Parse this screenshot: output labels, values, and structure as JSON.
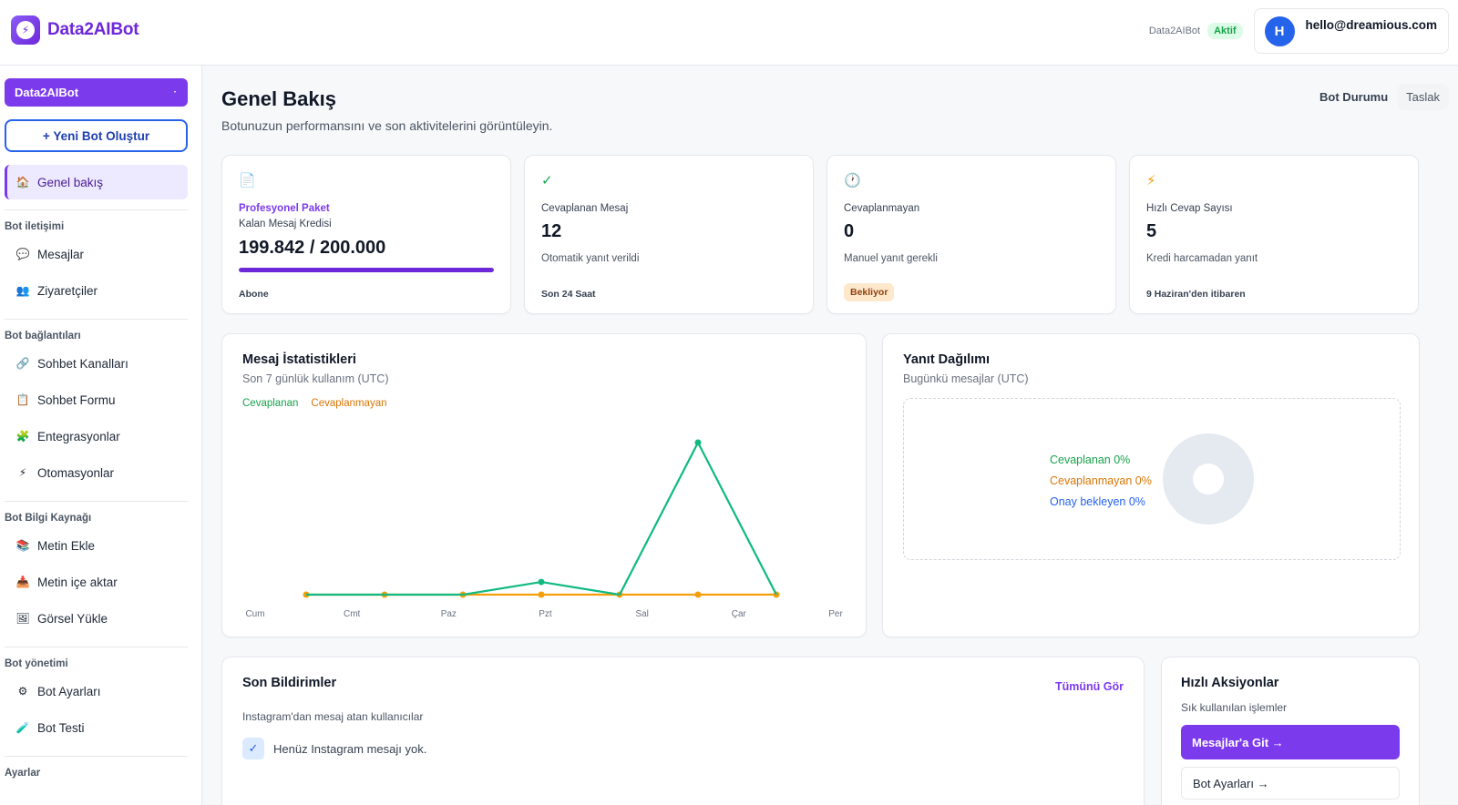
{
  "app": {
    "name": "Data2AIBot",
    "logo_glyph": "⚡"
  },
  "topbar": {
    "bot_name": "Data2AIBot",
    "status": "Aktif",
    "avatar_letter": "H",
    "email": "hello@dreamious.com"
  },
  "sidebar": {
    "bot_select": "Data2AIBot",
    "new_bot": "+ Yeni Bot Oluştur",
    "active": {
      "icon": "🏠",
      "label": "Genel bakış"
    },
    "sections": [
      {
        "title": "Bot iletişimi",
        "items": [
          {
            "icon": "💬",
            "label": "Mesajlar"
          },
          {
            "icon": "👥",
            "label": "Ziyaretçiler"
          }
        ]
      },
      {
        "title": "Bot bağlantıları",
        "items": [
          {
            "icon": "🔗",
            "label": "Sohbet Kanalları"
          },
          {
            "icon": "📋",
            "label": "Sohbet Formu"
          },
          {
            "icon": "🧩",
            "label": "Entegrasyonlar"
          },
          {
            "icon": "⚡",
            "label": "Otomasyonlar"
          }
        ]
      },
      {
        "title": "Bot Bilgi Kaynağı",
        "items": [
          {
            "icon": "📚",
            "label": "Metin Ekle"
          },
          {
            "icon": "📥",
            "label": "Metin içe aktar"
          },
          {
            "icon": "🖼",
            "label": "Görsel Yükle"
          }
        ]
      },
      {
        "title": "Bot yönetimi",
        "items": [
          {
            "icon": "⚙",
            "label": "Bot Ayarları"
          },
          {
            "icon": "🧪",
            "label": "Bot Testi"
          }
        ]
      },
      {
        "title": "Ayarlar",
        "items": []
      }
    ]
  },
  "header": {
    "title": "Genel Bakış",
    "subtitle": "Botunuzun performansını ve son aktivitelerini görüntüleyin.",
    "status_label": "Bot Durumu",
    "status_value": "Taslak"
  },
  "stats": {
    "plan": {
      "icon": "📄",
      "name": "Profesyonel Paket",
      "label": "Kalan Mesaj Kredisi",
      "value": "199.842 / 200.000",
      "progress": 0.99921,
      "footer": "Abone"
    },
    "answered": {
      "icon": "✓",
      "label": "Cevaplanan Mesaj",
      "value": "12",
      "desc": "Otomatik yanıt verildi",
      "footer": "Son 24 Saat"
    },
    "unanswered": {
      "icon": "🕐",
      "label": "Cevaplanmayan",
      "value": "0",
      "desc": "Manuel yanıt gerekli",
      "footer": "Bekliyor"
    },
    "quick": {
      "icon": "⚡",
      "label": "Hızlı Cevap Sayısı",
      "value": "5",
      "desc": "Kredi harcamadan yanıt",
      "footer": "9 Haziran'den itibaren"
    }
  },
  "message_stats": {
    "title": "Mesaj İstatistikleri",
    "subtitle": "Son 7 günlük kullanım (UTC)",
    "legend_a": "Cevaplanan",
    "legend_b": "Cevaplanmayan"
  },
  "chart_data": {
    "type": "line",
    "categories": [
      "Cum",
      "Cmt",
      "Paz",
      "Pzt",
      "Sal",
      "Çar",
      "Per"
    ],
    "series": [
      {
        "name": "Cevaplanan",
        "color": "#10b981",
        "values": [
          0,
          0,
          0,
          1,
          0,
          12,
          0
        ]
      },
      {
        "name": "Cevaplanmayan",
        "color": "#f59e0b",
        "values": [
          0,
          0,
          0,
          0,
          0,
          0,
          0
        ]
      }
    ],
    "ylim": [
      0,
      12
    ],
    "grid": false,
    "legend": "top-left"
  },
  "distribution": {
    "title": "Yanıt Dağılımı",
    "subtitle": "Bugünkü mesajlar (UTC)",
    "answered": "Cevaplanan 0%",
    "unanswered": "Cevaplanmayan 0%",
    "pending": "Onay bekleyen 0%"
  },
  "notifications": {
    "title": "Son Bildirimler",
    "see_all": "Tümünü Gör",
    "subtitle": "Instagram'dan mesaj atan kullanıcılar",
    "empty": "Henüz Instagram mesajı yok."
  },
  "quick_actions": {
    "title": "Hızlı Aksiyonlar",
    "subtitle": "Sık kullanılan işlemler",
    "primary": "Mesajlar'a Git →",
    "secondary": "Bot Ayarları →"
  }
}
